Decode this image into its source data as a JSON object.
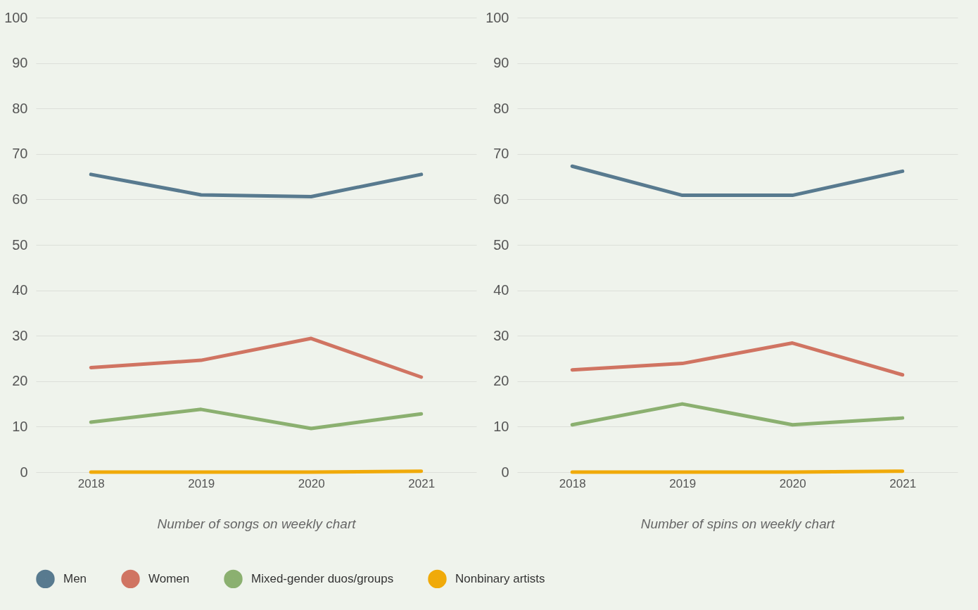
{
  "chart_data": [
    {
      "type": "line",
      "xlabel": "Number of songs on weekly chart",
      "categories": [
        "2018",
        "2019",
        "2020",
        "2021"
      ],
      "ylim": [
        0,
        100
      ],
      "yticks": [
        0,
        10,
        20,
        30,
        40,
        50,
        60,
        70,
        80,
        90,
        100
      ],
      "grid": "y",
      "legend": "bottom",
      "marker": "none",
      "line_style": "solid",
      "series": [
        {
          "name": "Men",
          "color": "#587a8f",
          "values": [
            65.5,
            61.0,
            60.6,
            65.5
          ]
        },
        {
          "name": "Women",
          "color": "#d07462",
          "values": [
            23.0,
            24.6,
            29.4,
            20.9
          ]
        },
        {
          "name": "Mixed-gender duos/groups",
          "color": "#8bb070",
          "values": [
            11.0,
            13.8,
            9.6,
            12.8
          ]
        },
        {
          "name": "Nonbinary artists",
          "color": "#f0aa0a",
          "values": [
            0,
            0,
            0,
            0.2
          ]
        }
      ]
    },
    {
      "type": "line",
      "xlabel": "Number of spins on weekly chart",
      "categories": [
        "2018",
        "2019",
        "2020",
        "2021"
      ],
      "ylim": [
        0,
        100
      ],
      "yticks": [
        0,
        10,
        20,
        30,
        40,
        50,
        60,
        70,
        80,
        90,
        100
      ],
      "grid": "y",
      "legend": "bottom",
      "marker": "none",
      "line_style": "solid",
      "series": [
        {
          "name": "Men",
          "color": "#587a8f",
          "values": [
            67.3,
            60.9,
            60.9,
            66.2
          ]
        },
        {
          "name": "Women",
          "color": "#d07462",
          "values": [
            22.5,
            23.9,
            28.4,
            21.4
          ]
        },
        {
          "name": "Mixed-gender duos/groups",
          "color": "#8bb070",
          "values": [
            10.4,
            15.0,
            10.4,
            11.9
          ]
        },
        {
          "name": "Nonbinary artists",
          "color": "#f0aa0a",
          "values": [
            0,
            0,
            0,
            0.2
          ]
        }
      ]
    }
  ]
}
